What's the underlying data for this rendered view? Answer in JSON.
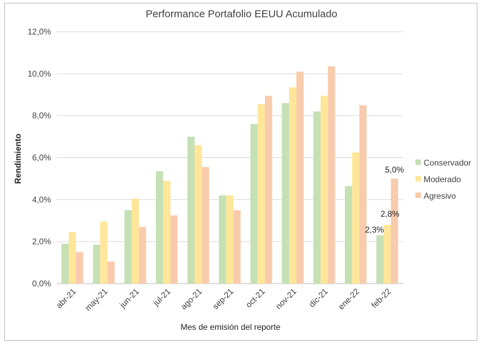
{
  "chart_data": {
    "type": "bar",
    "title": "Performance Portafolio EEUU Acumulado",
    "xlabel": "Mes de emisión del reporte",
    "ylabel": "Rendimiento",
    "ylim": [
      0,
      12
    ],
    "yticks": [
      "0,0%",
      "2,0%",
      "4,0%",
      "6,0%",
      "8,0%",
      "10,0%",
      "12,0%"
    ],
    "grid": true,
    "legend_position": "right",
    "categories": [
      "abr-21",
      "may-21",
      "jun-21",
      "jul-21",
      "ago-21",
      "sep-21",
      "oct-21",
      "nov-21",
      "dic-21",
      "ene-22",
      "feb-22"
    ],
    "series": [
      {
        "name": "Conservador",
        "color": "#c5e0b4",
        "values": [
          1.9,
          1.85,
          3.5,
          5.35,
          7.0,
          4.2,
          7.6,
          8.6,
          8.2,
          4.65,
          2.3
        ]
      },
      {
        "name": "Moderado",
        "color": "#ffe699",
        "values": [
          2.45,
          2.95,
          4.05,
          4.9,
          6.6,
          4.2,
          8.55,
          9.35,
          8.95,
          6.25,
          2.8
        ]
      },
      {
        "name": "Agresivo",
        "color": "#f8cbad",
        "values": [
          1.5,
          1.05,
          2.7,
          3.25,
          5.55,
          3.5,
          8.95,
          10.1,
          10.35,
          8.5,
          5.0
        ]
      }
    ],
    "data_labels": [
      {
        "series": 0,
        "category": 10,
        "text": "2,3%"
      },
      {
        "series": 1,
        "category": 10,
        "text": "2,8%"
      },
      {
        "series": 2,
        "category": 10,
        "text": "5,0%"
      }
    ]
  }
}
